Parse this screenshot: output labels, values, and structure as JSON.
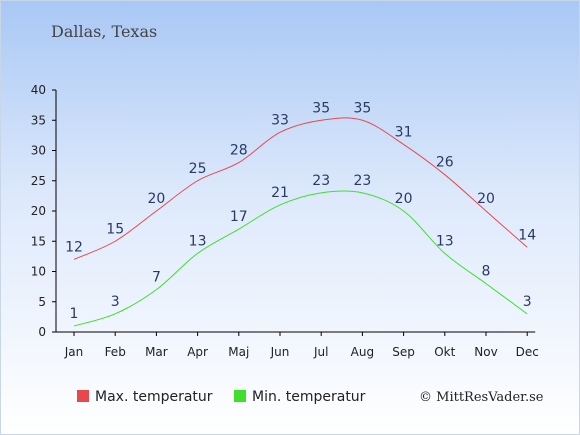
{
  "title": "Dallas, Texas",
  "copyright": "© MittResVader.se",
  "colors": {
    "max": "#e8484b",
    "min": "#3ee02a",
    "axis": "#000000",
    "label": "#2a3b62"
  },
  "chart_data": {
    "type": "line",
    "categories": [
      "Jan",
      "Feb",
      "Mar",
      "Apr",
      "Maj",
      "Jun",
      "Jul",
      "Aug",
      "Sep",
      "Okt",
      "Nov",
      "Dec"
    ],
    "series": [
      {
        "name": "Max. temperatur",
        "values": [
          12,
          15,
          20,
          25,
          28,
          33,
          35,
          35,
          31,
          26,
          20,
          14
        ]
      },
      {
        "name": "Min. temperatur",
        "values": [
          1,
          3,
          7,
          13,
          17,
          21,
          23,
          23,
          20,
          13,
          8,
          3
        ]
      }
    ],
    "ylim": [
      0,
      40
    ],
    "yticks": [
      0,
      5,
      10,
      15,
      20,
      25,
      30,
      35,
      40
    ],
    "grid": false,
    "legend_position": "bottom-left"
  }
}
